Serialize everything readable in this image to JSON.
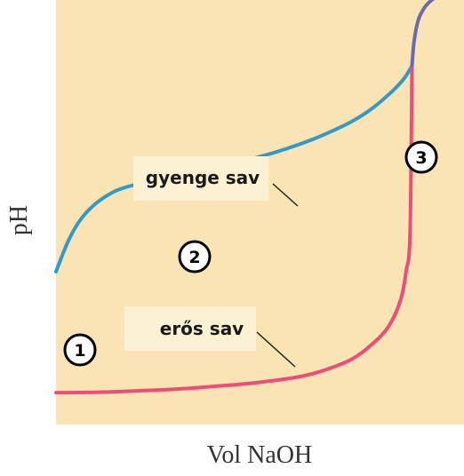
{
  "chart_data": {
    "type": "line",
    "title": "",
    "xlabel": "Vol NaOH",
    "ylabel": "pH",
    "grid": false,
    "background": "#fbe4b3",
    "series": [
      {
        "name": "gyenge sav",
        "color": "#3399cc",
        "x": [
          0.0,
          0.03,
          0.06,
          0.1,
          0.15,
          0.2,
          0.25,
          0.3,
          0.35,
          0.4,
          0.45,
          0.5,
          0.55,
          0.6,
          0.65,
          0.7,
          0.75,
          0.8,
          0.85,
          0.88,
          0.9
        ],
        "y": [
          0.36,
          0.43,
          0.48,
          0.52,
          0.55,
          0.565,
          0.575,
          0.585,
          0.595,
          0.605,
          0.615,
          0.627,
          0.64,
          0.655,
          0.672,
          0.692,
          0.715,
          0.745,
          0.785,
          0.815,
          0.845
        ]
      },
      {
        "name": "erős sav",
        "color": "#ee4d77",
        "x": [
          0.0,
          0.1,
          0.2,
          0.3,
          0.4,
          0.5,
          0.6,
          0.65,
          0.7,
          0.75,
          0.8,
          0.84,
          0.87,
          0.885,
          0.895,
          0.9
        ],
        "y": [
          0.075,
          0.076,
          0.079,
          0.083,
          0.09,
          0.098,
          0.11,
          0.12,
          0.135,
          0.155,
          0.19,
          0.23,
          0.29,
          0.36,
          0.45,
          0.845
        ]
      },
      {
        "name": "",
        "color": "#6a6ab0",
        "x": [
          0.9,
          0.905,
          0.915,
          0.93,
          0.95,
          0.97,
          1.0
        ],
        "y": [
          0.845,
          0.9,
          0.95,
          0.98,
          1.0,
          1.01,
          1.02
        ]
      }
    ],
    "labels": [
      {
        "text": "gyenge sav",
        "series": "gyenge sav"
      },
      {
        "text": "erős sav",
        "series": "erős sav"
      }
    ],
    "markers": [
      "1",
      "2",
      "3"
    ]
  }
}
